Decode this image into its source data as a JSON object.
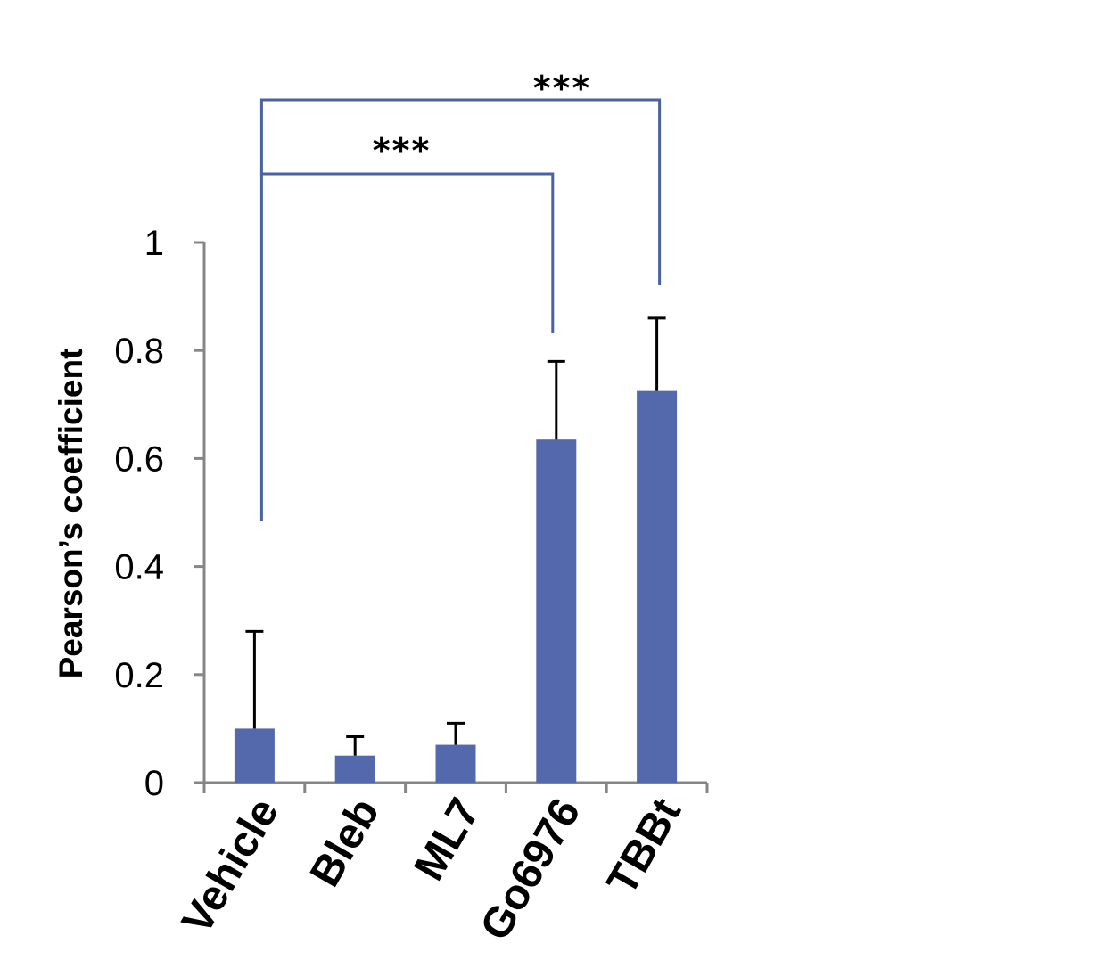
{
  "chart_data": {
    "type": "bar",
    "title": "",
    "xlabel": "",
    "ylabel": "Pearson’s coefficient",
    "ylim": [
      0,
      1
    ],
    "yticks": [
      0,
      0.2,
      0.4,
      0.6,
      0.8,
      1
    ],
    "ytick_labels": [
      "0",
      "0.2",
      "0.4",
      "0.6",
      "0.8",
      "1"
    ],
    "categories": [
      "Vehicle",
      "Bleb",
      "ML7",
      "Go6976",
      "TBBt"
    ],
    "values": [
      0.1,
      0.05,
      0.07,
      0.635,
      0.725
    ],
    "error_upper": [
      0.18,
      0.035,
      0.04,
      0.145,
      0.135
    ],
    "bar_color": "#5469AB",
    "error_color": "#000000",
    "axis_color": "#868686",
    "bracket_color": "#4A62A3",
    "grid": false,
    "legend": "none",
    "significance": [
      {
        "from": "Vehicle",
        "to": "Go6976",
        "label": "***"
      },
      {
        "from": "Vehicle",
        "to": "TBBt",
        "label": "***"
      }
    ]
  }
}
